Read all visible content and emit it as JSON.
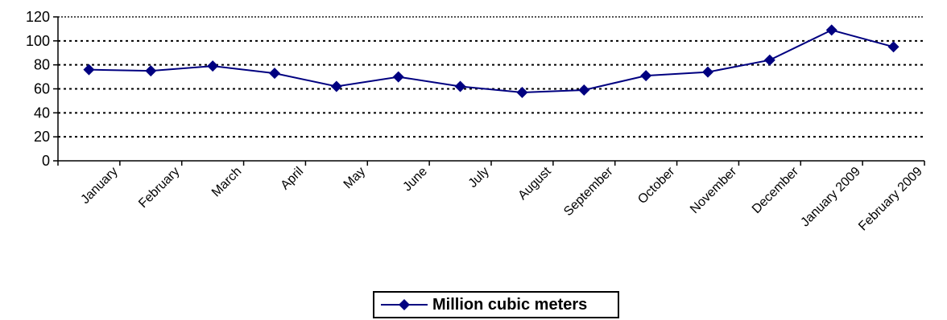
{
  "chart_data": {
    "type": "line",
    "title": "",
    "xlabel": "",
    "ylabel": "",
    "ylim": [
      0,
      120
    ],
    "yticks": [
      "0",
      "20",
      "40",
      "60",
      "80",
      "100",
      "120"
    ],
    "grid": "horizontal-dotted",
    "legend_position": "bottom-center",
    "categories": [
      "January",
      "February",
      "March",
      "April",
      "May",
      "June",
      "July",
      "August",
      "September",
      "October",
      "November",
      "December",
      "January 2009",
      "February 2009"
    ],
    "series": [
      {
        "name": "Million cubic meters",
        "color": "#000080",
        "marker": "diamond",
        "values": [
          76,
          75,
          79,
          73,
          62,
          70,
          62,
          57,
          59,
          71,
          74,
          84,
          109,
          95
        ]
      }
    ]
  }
}
